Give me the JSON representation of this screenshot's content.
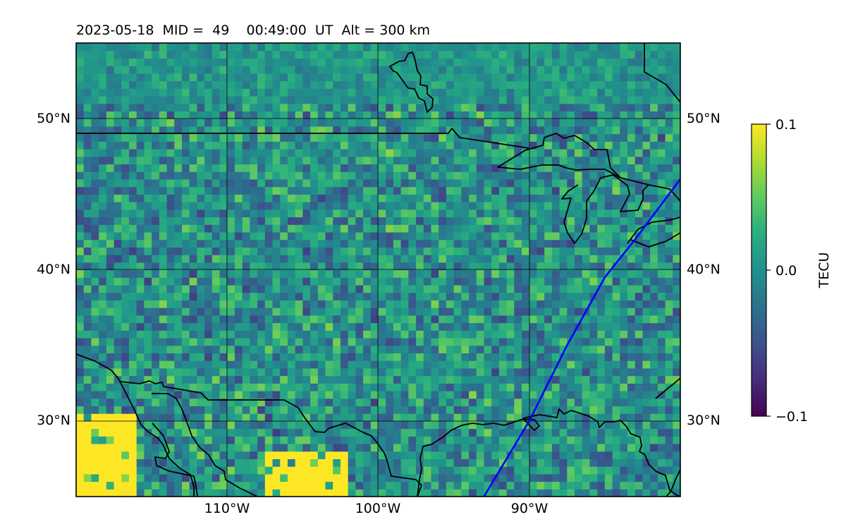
{
  "chart_data": {
    "type": "heatmap",
    "title": "2023-05-18  MID =  49    00:49:00  UT  Alt = 300 km",
    "date": "2023-05-18",
    "mid": 49,
    "time_ut": "00:49:00",
    "altitude_km": 300,
    "xlim": [
      -120,
      -80
    ],
    "ylim": [
      25,
      55
    ],
    "x_ticks": [
      -110,
      -100,
      -90
    ],
    "x_tick_labels": [
      "110°W",
      "100°W",
      "90°W"
    ],
    "y_ticks": [
      30,
      40,
      50
    ],
    "y_tick_labels": [
      "30°N",
      "40°N",
      "50°N"
    ],
    "grid": true,
    "colorbar": {
      "label": "TECU",
      "colormap": "viridis",
      "min": -0.1,
      "max": 0.1,
      "ticks": [
        0.1,
        0.0,
        -0.1
      ],
      "tick_labels": [
        "0.1",
        "0.0",
        "−0.1"
      ]
    },
    "background_value": 0.0,
    "saturated_regions": [
      {
        "lon_min": -120,
        "lon_max": -116,
        "lat_min": 25,
        "lat_max": 30.5,
        "value": 0.1
      },
      {
        "lon_min": -107.5,
        "lon_max": -102,
        "lat_min": 25,
        "lat_max": 28,
        "value": 0.1
      }
    ],
    "overlay_track": {
      "color": "#0000ff",
      "points": [
        [
          -93,
          25
        ],
        [
          -90,
          30
        ],
        [
          -87.5,
          35
        ],
        [
          -85,
          39.5
        ],
        [
          -83,
          42
        ],
        [
          -80,
          46
        ]
      ]
    }
  },
  "colors": {
    "track": "#0000ff",
    "coastline": "#000000",
    "grid": "#000000"
  }
}
